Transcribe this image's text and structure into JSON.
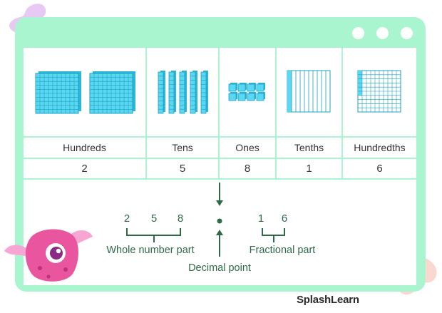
{
  "place_values": [
    {
      "label": "Hundreds",
      "value": "2",
      "icon": "hundred-flat-blocks"
    },
    {
      "label": "Tens",
      "value": "5",
      "icon": "ten-rod-blocks"
    },
    {
      "label": "Ones",
      "value": "8",
      "icon": "unit-cubes"
    },
    {
      "label": "Tenths",
      "value": "1",
      "icon": "tenths-grid"
    },
    {
      "label": "Hundredths",
      "value": "6",
      "icon": "hundredths-grid"
    }
  ],
  "whole_digits": [
    "2",
    "5",
    "8"
  ],
  "fraction_digits": [
    "1",
    "6"
  ],
  "whole_label": "Whole number part",
  "fraction_label": "Fractional part",
  "point_label": "Decimal point",
  "brand": "SplashLearn",
  "colors": {
    "frame": "#a9f5d0",
    "accent": "#2d6b47",
    "block": "#5ad8f2",
    "block_dark": "#2bb5d6"
  }
}
